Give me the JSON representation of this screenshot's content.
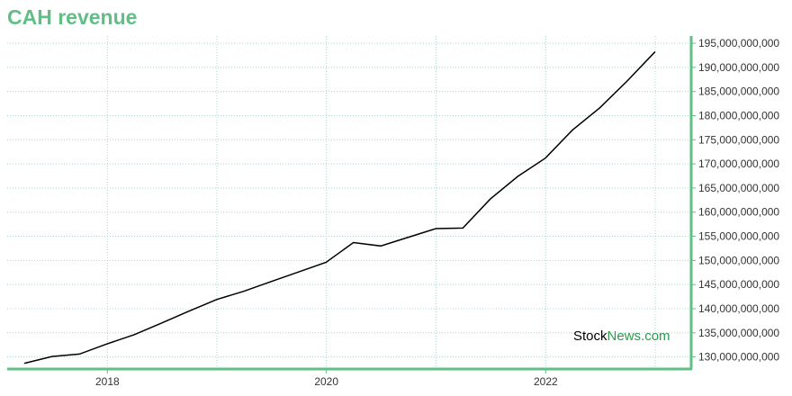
{
  "title": "CAH revenue",
  "watermark": {
    "part1": "Stock",
    "part2": "News.com"
  },
  "colors": {
    "title": "#5fbf85",
    "axis": "#5fbf85",
    "grid": "#a8d4cf",
    "line": "#000000"
  },
  "chart_data": {
    "type": "line",
    "title": "CAH revenue",
    "x_ticks": [
      "2018",
      "2020",
      "2022"
    ],
    "y_ticks": [
      "130,000,000,000",
      "135,000,000,000",
      "140,000,000,000",
      "145,000,000,000",
      "150,000,000,000",
      "155,000,000,000",
      "160,000,000,000",
      "165,000,000,000",
      "170,000,000,000",
      "175,000,000,000",
      "180,000,000,000",
      "185,000,000,000",
      "190,000,000,000",
      "195,000,000,000"
    ],
    "xlim": [
      "2017-02-01",
      "2023-05-01"
    ],
    "ylim": [
      127500000000,
      196500000000
    ],
    "grid": true,
    "y_axis_side": "right",
    "series": [
      {
        "x": [
          "2017-03-31",
          "2017-06-30",
          "2017-09-30",
          "2017-12-31",
          "2018-03-31",
          "2018-06-30",
          "2018-09-30",
          "2018-12-31",
          "2019-03-31",
          "2019-06-30",
          "2019-09-30",
          "2019-12-31",
          "2020-03-31",
          "2020-06-30",
          "2020-09-30",
          "2020-12-31",
          "2021-03-31",
          "2021-06-30",
          "2021-09-30",
          "2021-12-31",
          "2022-03-31",
          "2022-06-30",
          "2022-09-30",
          "2022-12-31"
        ],
        "y": [
          128700000000,
          130100000000,
          130600000000,
          132700000000,
          134600000000,
          137000000000,
          139500000000,
          141900000000,
          143600000000,
          145600000000,
          147600000000,
          149600000000,
          153700000000,
          153000000000,
          154800000000,
          156600000000,
          156700000000,
          162700000000,
          167400000000,
          171200000000,
          177000000000,
          181600000000,
          187200000000,
          193200000000
        ]
      }
    ]
  }
}
